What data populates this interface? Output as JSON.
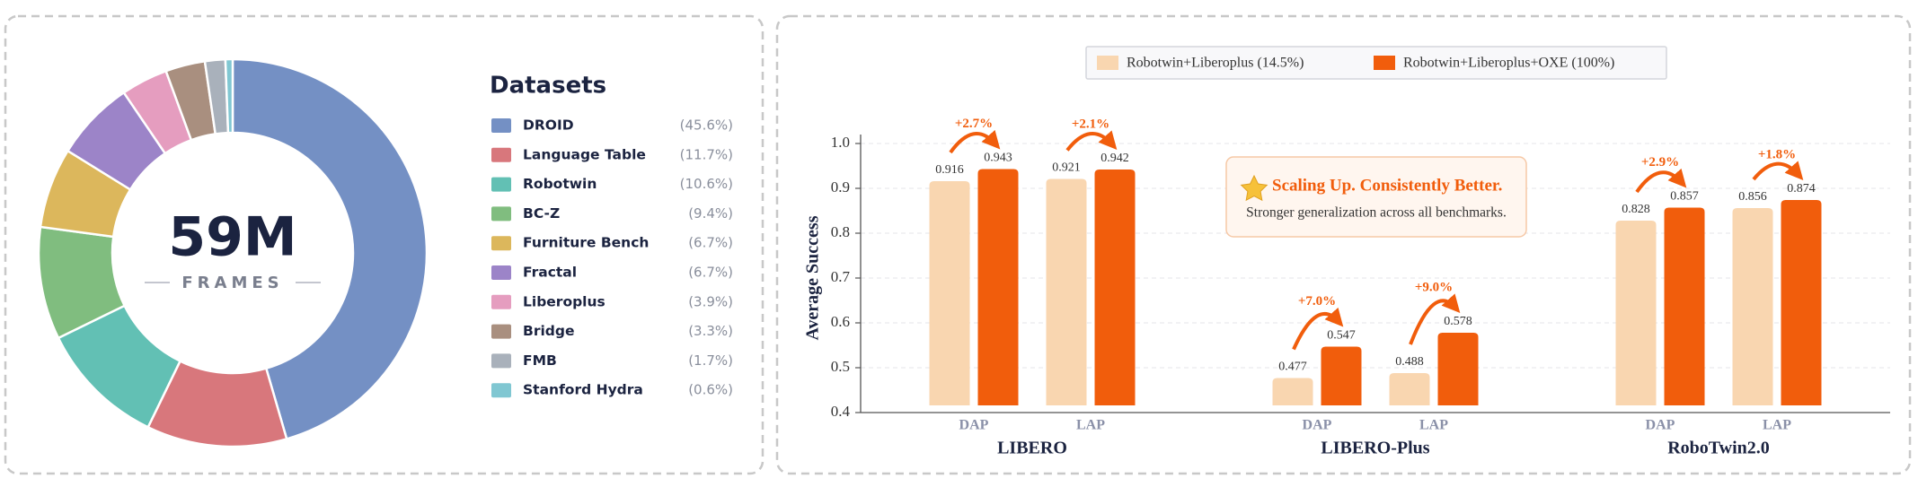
{
  "chart_data": [
    {
      "type": "pie",
      "donut": true,
      "title": "Datasets",
      "center_text": "59M",
      "center_subtext": "FRAMES",
      "categories": [
        "DROID",
        "Language Table",
        "Robotwin",
        "BC-Z",
        "Furniture Bench",
        "Fractal",
        "Liberoplus",
        "Bridge",
        "FMB",
        "Stanford Hydra"
      ],
      "values": [
        45.6,
        11.7,
        10.6,
        9.4,
        6.7,
        6.7,
        3.9,
        3.3,
        1.7,
        0.6
      ],
      "value_labels": [
        "(45.6%)",
        "(11.7%)",
        "(10.6%)",
        "(9.4%)",
        "(6.7%)",
        "(6.7%)",
        "(3.9%)",
        "(3.3%)",
        "(1.7%)",
        "(0.6%)"
      ],
      "colors": [
        "#7490c4",
        "#d8777c",
        "#62c0b4",
        "#80bd7f",
        "#dcb75c",
        "#9c84c8",
        "#e59dbf",
        "#a98f7f",
        "#a9b1bb",
        "#80c7d2"
      ]
    },
    {
      "type": "bar",
      "y_label": "Average Success",
      "legend_position": "top",
      "grid": true,
      "groups": [
        "LIBERO",
        "LIBERO-Plus",
        "RoboTwin2.0"
      ],
      "categories": [
        "DAP",
        "LAP",
        "DAP",
        "LAP",
        "DAP",
        "LAP"
      ],
      "series": [
        {
          "name": "Robotwin+Liberoplus (14.5%)",
          "color": "#f9d6b0",
          "values": [
            0.916,
            0.921,
            0.477,
            0.488,
            0.828,
            0.856
          ]
        },
        {
          "name": "Robotwin+Liberoplus+OXE (100%)",
          "color": "#f15d0c",
          "values": [
            0.943,
            0.942,
            0.547,
            0.578,
            0.857,
            0.874
          ]
        }
      ],
      "gains": [
        2.7,
        2.1,
        7.0,
        9.0,
        2.9,
        1.8
      ],
      "gain_labels": [
        "+2.7%",
        "+2.1%",
        "+7.0%",
        "+9.0%",
        "+2.9%",
        "+1.8%"
      ],
      "ylim": [
        0.4,
        1.0
      ],
      "yticks": [
        0.4,
        0.5,
        0.6,
        0.7,
        0.8,
        0.9,
        {
          "value": 1,
          "label": "1.0"
        }
      ],
      "callout": {
        "title": "Scaling Up. Consistently Better.",
        "text": "Stronger generalization across all benchmarks."
      }
    }
  ]
}
